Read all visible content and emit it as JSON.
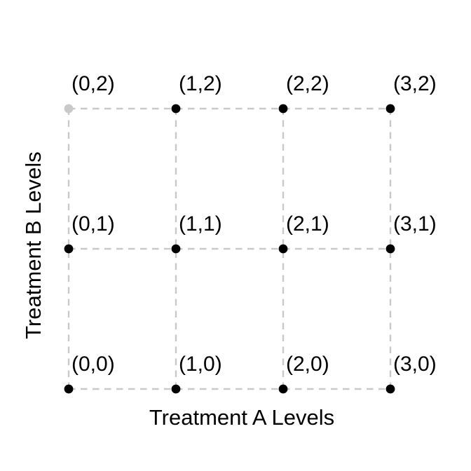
{
  "colors": {
    "background": "#ffffff",
    "text": "#000000",
    "grid": "#c9c9c9",
    "point_default": "#000000",
    "point_highlight": "#c9c9c9"
  },
  "chart_data": {
    "type": "scatter",
    "title": "",
    "xlabel": "Treatment A Levels",
    "ylabel": "Treatment B Levels",
    "x_levels": [
      0,
      1,
      2,
      3
    ],
    "y_levels": [
      0,
      1,
      2
    ],
    "xlim": [
      0,
      3
    ],
    "ylim": [
      0,
      2
    ],
    "grid": "dashed lattice connecting all factor-level combinations",
    "legend": "none",
    "axes_drawn": false,
    "point_label_color": "#000000",
    "points": [
      {
        "x": 0,
        "y": 0,
        "label": "(0,0)",
        "color": "#000000"
      },
      {
        "x": 1,
        "y": 0,
        "label": "(1,0)",
        "color": "#000000"
      },
      {
        "x": 2,
        "y": 0,
        "label": "(2,0)",
        "color": "#000000"
      },
      {
        "x": 3,
        "y": 0,
        "label": "(3,0)",
        "color": "#000000"
      },
      {
        "x": 0,
        "y": 1,
        "label": "(0,1)",
        "color": "#000000"
      },
      {
        "x": 1,
        "y": 1,
        "label": "(1,1)",
        "color": "#000000"
      },
      {
        "x": 2,
        "y": 1,
        "label": "(2,1)",
        "color": "#000000"
      },
      {
        "x": 3,
        "y": 1,
        "label": "(3,1)",
        "color": "#000000"
      },
      {
        "x": 0,
        "y": 2,
        "label": "(0,2)",
        "color": "#c9c9c9"
      },
      {
        "x": 1,
        "y": 2,
        "label": "(1,2)",
        "color": "#000000"
      },
      {
        "x": 2,
        "y": 2,
        "label": "(2,2)",
        "color": "#000000"
      },
      {
        "x": 3,
        "y": 2,
        "label": "(3,2)",
        "color": "#000000"
      }
    ]
  }
}
